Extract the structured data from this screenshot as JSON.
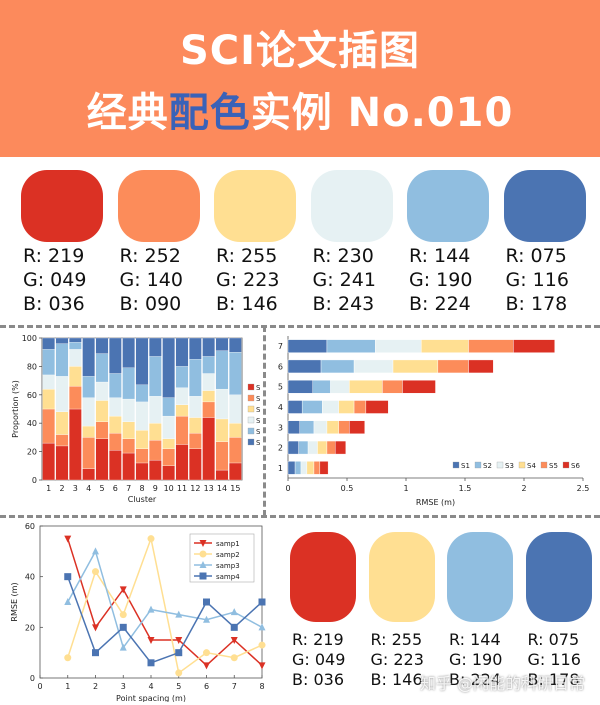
{
  "header": {
    "line1": "SCI论文插图",
    "line2_a": "经典",
    "line2_b": "配色",
    "line2_c": "实例 No.010"
  },
  "palette": [
    {
      "hex": "#db3124",
      "r": "R: 219",
      "g": "G: 049",
      "b": "B: 036"
    },
    {
      "hex": "#fc8c5a",
      "r": "R: 252",
      "g": "G: 140",
      "b": "B: 090"
    },
    {
      "hex": "#ffdf92",
      "r": "R: 255",
      "g": "G: 223",
      "b": "B: 146"
    },
    {
      "hex": "#e6f1f3",
      "r": "R: 230",
      "g": "G: 241",
      "b": "B: 243"
    },
    {
      "hex": "#90bee0",
      "r": "R: 144",
      "g": "G: 190",
      "b": "B: 224"
    },
    {
      "hex": "#4b74b2",
      "r": "R: 075",
      "g": "G: 116",
      "b": "B: 178"
    }
  ],
  "palette2": [
    {
      "hex": "#db3124",
      "r": "R: 219",
      "g": "G: 049",
      "b": "B: 036"
    },
    {
      "hex": "#ffdf92",
      "r": "R: 255",
      "g": "G: 223",
      "b": "B: 146"
    },
    {
      "hex": "#90bee0",
      "r": "R: 144",
      "g": "G: 190",
      "b": "B: 224"
    },
    {
      "hex": "#4b74b2",
      "r": "R: 075",
      "g": "G: 116",
      "b": "B: 178"
    }
  ],
  "watermark": "知乎 @闲能的科研日常",
  "chart_data": [
    {
      "type": "bar",
      "stacked": true,
      "xlabel": "Cluster",
      "ylabel": "Proportion (%)",
      "ylim": [
        0,
        100
      ],
      "yticks": [
        "0",
        "20",
        "40",
        "60",
        "80",
        "100"
      ],
      "categories": [
        "1",
        "2",
        "3",
        "4",
        "5",
        "6",
        "7",
        "8",
        "9",
        "10",
        "11",
        "12",
        "13",
        "14",
        "15"
      ],
      "legend_position": "right",
      "series": [
        {
          "name": "S1",
          "color": "#db3124",
          "values": [
            26,
            24,
            50,
            8,
            29,
            21,
            19,
            12,
            14,
            10,
            25,
            22,
            44,
            7,
            12
          ]
        },
        {
          "name": "S2",
          "color": "#fc8c5a",
          "values": [
            24,
            8,
            16,
            22,
            12,
            12,
            10,
            10,
            14,
            12,
            20,
            11,
            11,
            20,
            18
          ]
        },
        {
          "name": "S3",
          "color": "#ffdf92",
          "values": [
            14,
            16,
            14,
            8,
            15,
            12,
            12,
            13,
            12,
            7,
            8,
            11,
            8,
            16,
            10
          ]
        },
        {
          "name": "S4",
          "color": "#e6f1f3",
          "values": [
            10,
            25,
            12,
            20,
            13,
            13,
            16,
            20,
            19,
            16,
            12,
            15,
            12,
            21,
            20
          ]
        },
        {
          "name": "S5",
          "color": "#90bee0",
          "values": [
            18,
            23,
            5,
            15,
            20,
            17,
            22,
            12,
            28,
            13,
            15,
            26,
            12,
            27,
            30
          ]
        },
        {
          "name": "S6",
          "color": "#4b74b2",
          "values": [
            8,
            4,
            3,
            27,
            11,
            25,
            21,
            33,
            13,
            42,
            20,
            15,
            13,
            9,
            10
          ]
        }
      ]
    },
    {
      "type": "bar",
      "orientation": "horizontal",
      "stacked": true,
      "xlabel": "RMSE (m)",
      "xlim": [
        0,
        2.5
      ],
      "xticks": [
        "0",
        "0.5",
        "1",
        "1.5",
        "2",
        "2.5"
      ],
      "categories": [
        "1",
        "2",
        "3",
        "4",
        "5",
        "6",
        "7"
      ],
      "legend_position": "bottom-right",
      "series": [
        {
          "name": "S1",
          "color": "#4b74b2",
          "values": [
            0.06,
            0.09,
            0.1,
            0.12,
            0.21,
            0.28,
            0.33
          ]
        },
        {
          "name": "S2",
          "color": "#90bee0",
          "values": [
            0.05,
            0.08,
            0.12,
            0.17,
            0.15,
            0.28,
            0.41
          ]
        },
        {
          "name": "S3",
          "color": "#e6f1f3",
          "values": [
            0.05,
            0.08,
            0.11,
            0.14,
            0.16,
            0.33,
            0.39
          ]
        },
        {
          "name": "S4",
          "color": "#ffdf92",
          "values": [
            0.06,
            0.08,
            0.1,
            0.13,
            0.28,
            0.38,
            0.4
          ]
        },
        {
          "name": "S5",
          "color": "#fc8c5a",
          "values": [
            0.05,
            0.07,
            0.09,
            0.1,
            0.17,
            0.26,
            0.38
          ]
        },
        {
          "name": "S6",
          "color": "#db3124",
          "values": [
            0.07,
            0.09,
            0.13,
            0.19,
            0.28,
            0.21,
            0.35
          ]
        }
      ]
    },
    {
      "type": "line",
      "xlabel": "Point spacing (m)",
      "ylabel": "RMSE (m)",
      "xlim": [
        0,
        8
      ],
      "ylim": [
        0,
        60
      ],
      "xticks": [
        "0",
        "1",
        "2",
        "3",
        "4",
        "5",
        "6",
        "7",
        "8"
      ],
      "yticks": [
        "0",
        "20",
        "40",
        "60"
      ],
      "x": [
        1,
        2,
        3,
        4,
        5,
        6,
        7,
        8
      ],
      "legend_position": "top-right",
      "series": [
        {
          "name": "samp1",
          "color": "#db3124",
          "marker": "triangle-down",
          "values": [
            55,
            20,
            35,
            15,
            15,
            5,
            15,
            5
          ]
        },
        {
          "name": "samp2",
          "color": "#ffdf92",
          "marker": "circle",
          "values": [
            8,
            42,
            25,
            55,
            2,
            10,
            8,
            13
          ]
        },
        {
          "name": "samp3",
          "color": "#90bee0",
          "marker": "triangle-up",
          "values": [
            30,
            50,
            12,
            27,
            25,
            23,
            26,
            20
          ]
        },
        {
          "name": "samp4",
          "color": "#4b74b2",
          "marker": "square",
          "values": [
            40,
            10,
            20,
            6,
            10,
            30,
            20,
            30
          ]
        }
      ]
    }
  ]
}
